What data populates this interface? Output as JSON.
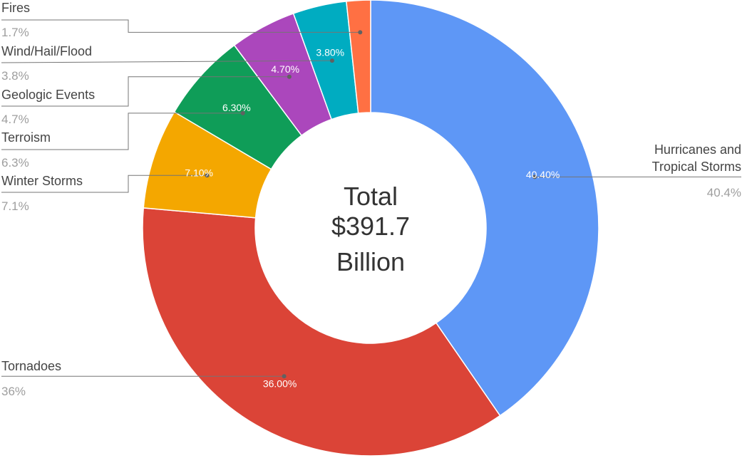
{
  "chart_data": {
    "type": "pie",
    "donut": true,
    "center_text": [
      "Total",
      "$391.7",
      "Billion"
    ],
    "slices": [
      {
        "name": "Hurricanes and Tropical Storms",
        "name_lines": [
          "Hurricanes and",
          "Tropical Storms"
        ],
        "value": 40.4,
        "label": "40.40%",
        "legend_value": "40.4%",
        "color": "#5e97f6"
      },
      {
        "name": "Tornadoes",
        "name_lines": [
          "Tornadoes"
        ],
        "value": 36.0,
        "label": "36.00%",
        "legend_value": "36%",
        "color": "#db4437"
      },
      {
        "name": "Winter Storms",
        "name_lines": [
          "Winter Storms"
        ],
        "value": 7.1,
        "label": "7.10%",
        "legend_value": "7.1%",
        "color": "#f4a700"
      },
      {
        "name": "Terroism",
        "name_lines": [
          "Terroism"
        ],
        "value": 6.3,
        "label": "6.30%",
        "legend_value": "6.3%",
        "color": "#0f9d58"
      },
      {
        "name": "Geologic Events",
        "name_lines": [
          "Geologic Events"
        ],
        "value": 4.7,
        "label": "4.70%",
        "legend_value": "4.7%",
        "color": "#ab47bc"
      },
      {
        "name": "Wind/Hail/Flood",
        "name_lines": [
          "Wind/Hail/Flood"
        ],
        "value": 3.8,
        "label": "3.80%",
        "legend_value": "3.8%",
        "color": "#00acc1"
      },
      {
        "name": "Fires",
        "name_lines": [
          "Fires"
        ],
        "value": 1.7,
        "label": "",
        "legend_value": "1.7%",
        "color": "#ff7043"
      }
    ]
  }
}
